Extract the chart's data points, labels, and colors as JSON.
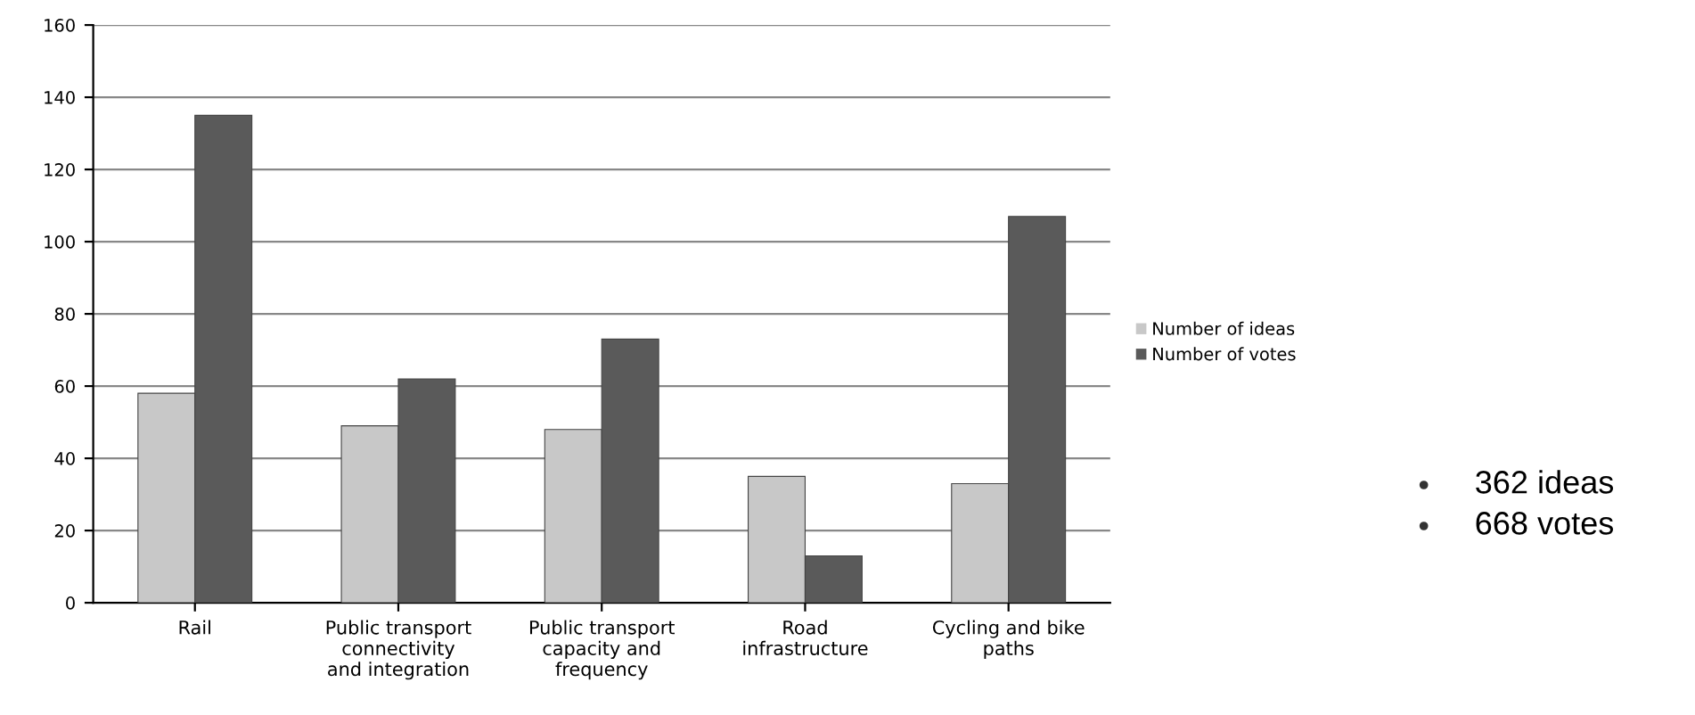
{
  "chart_data": {
    "type": "bar",
    "categories": [
      "Rail",
      "Public transport\nconnectivity\nand integration",
      "Public transport\ncapacity and\nfrequency",
      "Road\ninfrastructure",
      "Cycling and bike\npaths"
    ],
    "series": [
      {
        "name": "Number of ideas",
        "color": "#c8c8c8",
        "values": [
          58,
          49,
          48,
          35,
          33
        ]
      },
      {
        "name": "Number of votes",
        "color": "#5a5a5a",
        "values": [
          135,
          62,
          73,
          13,
          107
        ]
      }
    ],
    "ylim": [
      0,
      160
    ],
    "yticks": [
      0,
      20,
      40,
      60,
      80,
      100,
      120,
      140,
      160
    ],
    "grid": "y",
    "legend": "right",
    "annotations": [
      "362 ideas",
      "668 votes"
    ]
  }
}
